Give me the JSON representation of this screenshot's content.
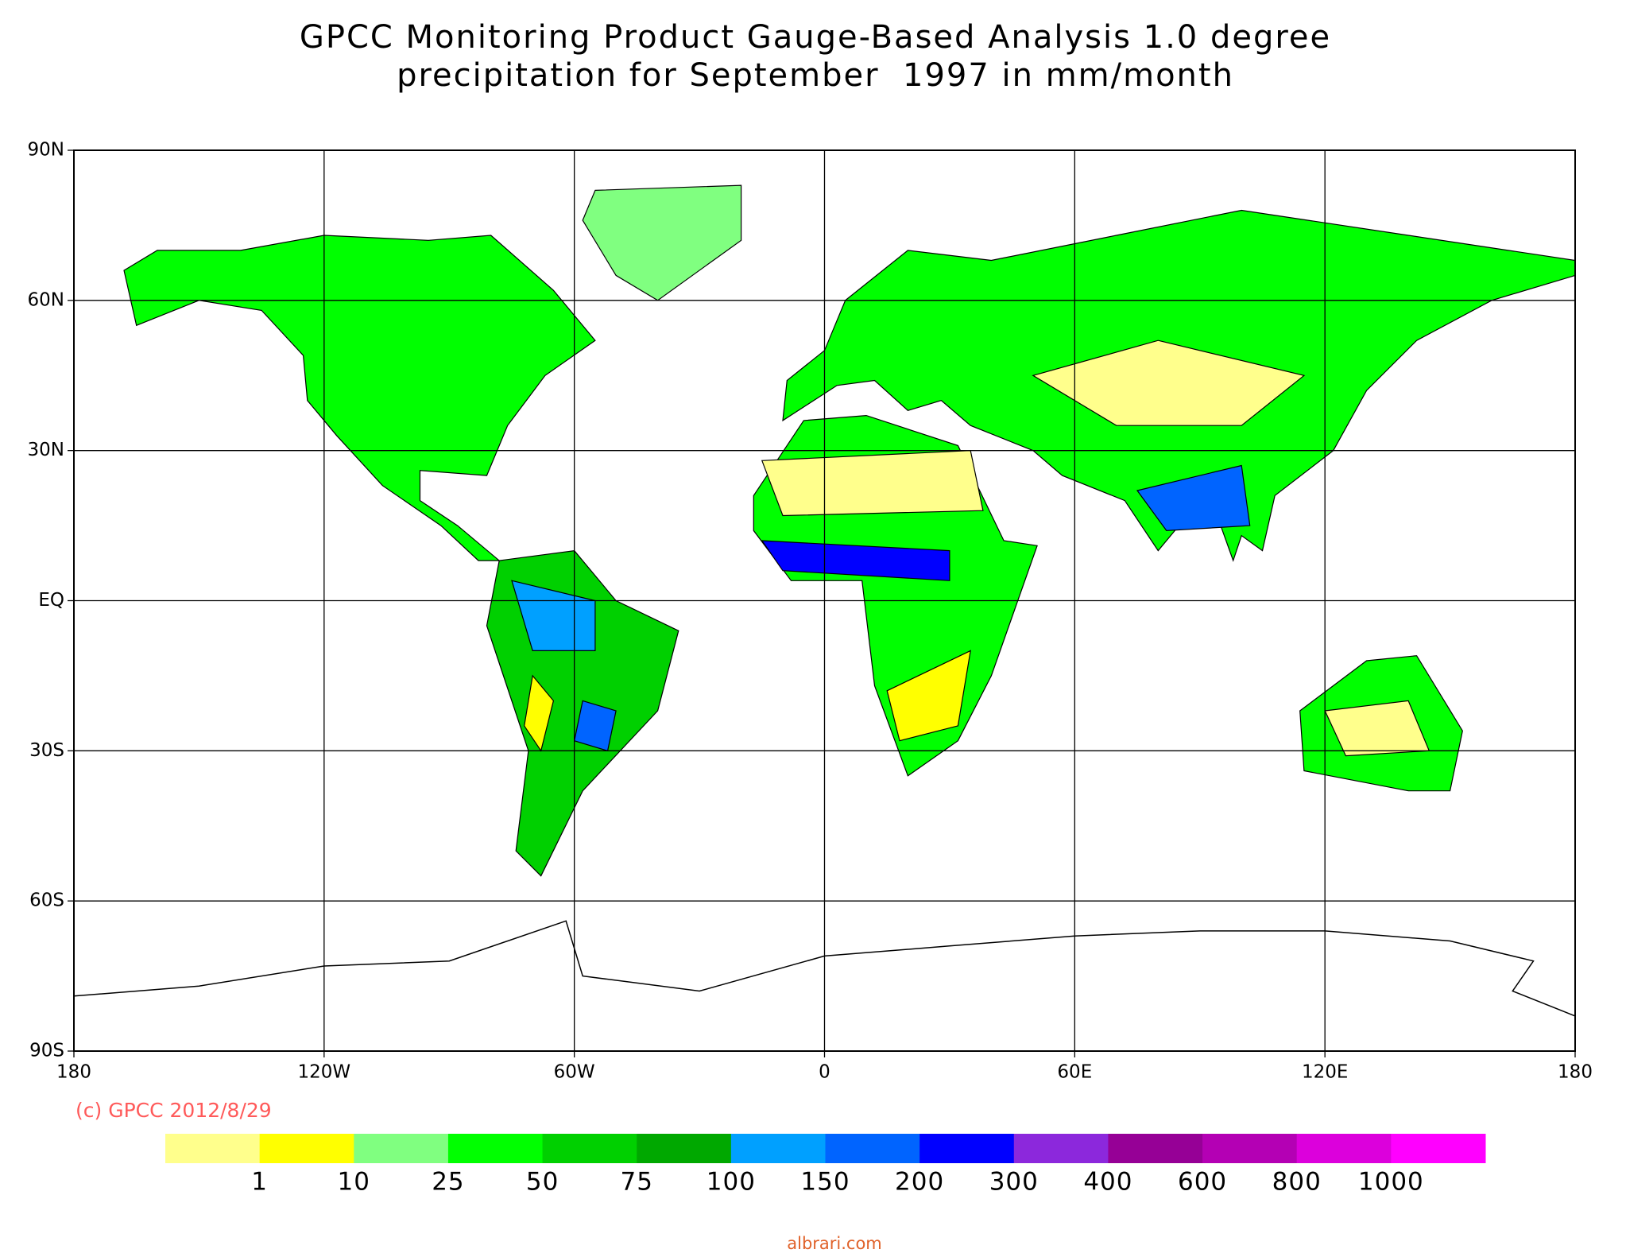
{
  "title": [
    "GPCC Monitoring Product Gauge-Based Analysis 1.0 degree",
    "precipitation for September  1997 in mm/month"
  ],
  "map": {
    "lon_ticks": [
      {
        "value": -180,
        "label": "180"
      },
      {
        "value": -120,
        "label": "120W"
      },
      {
        "value": -60,
        "label": "60W"
      },
      0,
      {
        "value": 60,
        "label": "60E"
      },
      {
        "value": 120,
        "label": "120E"
      },
      {
        "value": 180,
        "label": "180"
      }
    ],
    "lat_ticks": [
      {
        "value": 90,
        "label": "90N"
      },
      {
        "value": 60,
        "label": "60N"
      },
      {
        "value": 30,
        "label": "30N"
      },
      {
        "value": 0,
        "label": "EQ"
      },
      {
        "value": -30,
        "label": "30S"
      },
      {
        "value": -60,
        "label": "60S"
      },
      {
        "value": -90,
        "label": "90S"
      }
    ]
  },
  "credit": "(c) GPCC 2012/8/29",
  "colorbar": {
    "colors": [
      "#ffff8c",
      "#ffff00",
      "#80ff80",
      "#00ff00",
      "#00d000",
      "#00a800",
      "#00a0ff",
      "#0064ff",
      "#0000ff",
      "#8c28dc",
      "#960096",
      "#b400b4",
      "#dc00dc",
      "#ff00ff"
    ],
    "labels": [
      "1",
      "10",
      "25",
      "50",
      "75",
      "100",
      "150",
      "200",
      "300",
      "400",
      "600",
      "800",
      "1000"
    ]
  },
  "watermark": "albrari.com"
}
